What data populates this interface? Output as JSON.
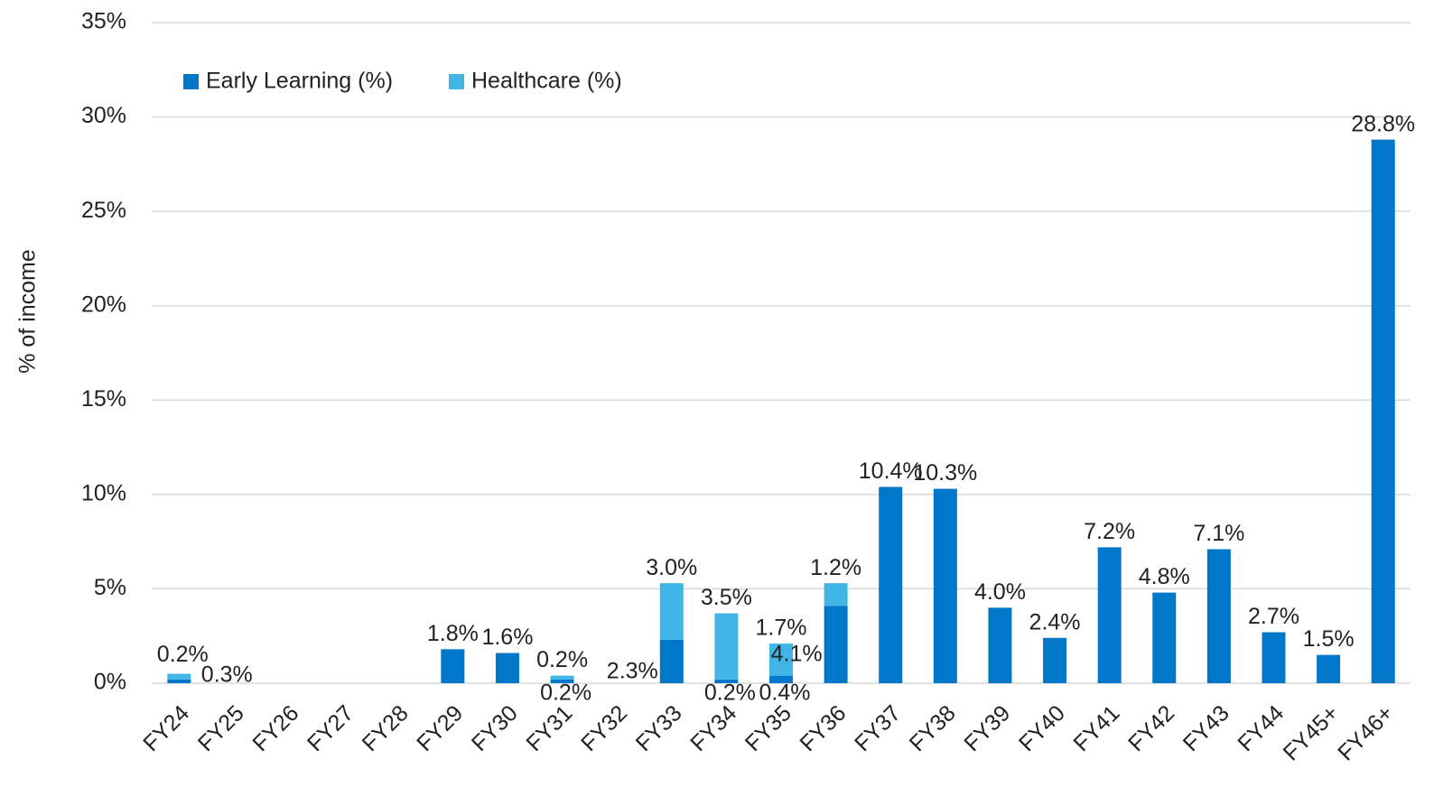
{
  "chart_data": {
    "type": "stacked_bar",
    "y_label": "% of income",
    "categories": [
      "FY24",
      "FY25",
      "FY26",
      "FY27",
      "FY28",
      "FY29",
      "FY30",
      "FY31",
      "FY32",
      "FY33",
      "FY34",
      "FY35",
      "FY36",
      "FY37",
      "FY38",
      "FY39",
      "FY40",
      "FY41",
      "FY42",
      "FY43",
      "FY44",
      "FY45+",
      "FY46+"
    ],
    "series": [
      {
        "name": "Early Learning (%)",
        "color": "#0077c8",
        "values": [
          0.2,
          null,
          null,
          null,
          null,
          1.8,
          1.6,
          0.2,
          null,
          2.3,
          0.2,
          0.4,
          4.1,
          10.4,
          10.3,
          4.0,
          2.4,
          7.2,
          4.8,
          7.1,
          2.7,
          1.5,
          28.8
        ],
        "value_labels": [
          "0.2%",
          null,
          null,
          null,
          null,
          "1.8%",
          "1.6%",
          "0.2%",
          null,
          "2.3%",
          "0.2%",
          "0.4%",
          "4.1%",
          "10.4%",
          "10.3%",
          "4.0%",
          "2.4%",
          "7.2%",
          "4.8%",
          "7.1%",
          "2.7%",
          "1.5%",
          "28.8%"
        ]
      },
      {
        "name": "Healthcare (%)",
        "color": "#41b6e6",
        "values": [
          0.3,
          null,
          null,
          null,
          null,
          null,
          null,
          0.2,
          null,
          3.0,
          3.5,
          1.7,
          1.2,
          null,
          null,
          null,
          null,
          null,
          null,
          null,
          null,
          null,
          null
        ],
        "value_labels": [
          "0.3%",
          null,
          null,
          null,
          null,
          null,
          null,
          "0.2%",
          null,
          "3.0%",
          "3.5%",
          "1.7%",
          "1.2%",
          null,
          null,
          null,
          null,
          null,
          null,
          null,
          null,
          null,
          null
        ]
      }
    ],
    "ylim": [
      0,
      35
    ],
    "yticks": [
      {
        "value": 0,
        "label": "0%"
      },
      {
        "value": 5,
        "label": "5%"
      },
      {
        "value": 10,
        "label": "10%"
      },
      {
        "value": 15,
        "label": "15%"
      },
      {
        "value": 20,
        "label": "20%"
      },
      {
        "value": 25,
        "label": "25%"
      },
      {
        "value": 30,
        "label": "30%"
      },
      {
        "value": 35,
        "label": "35%"
      }
    ],
    "grid": true,
    "legend": "top-left"
  }
}
